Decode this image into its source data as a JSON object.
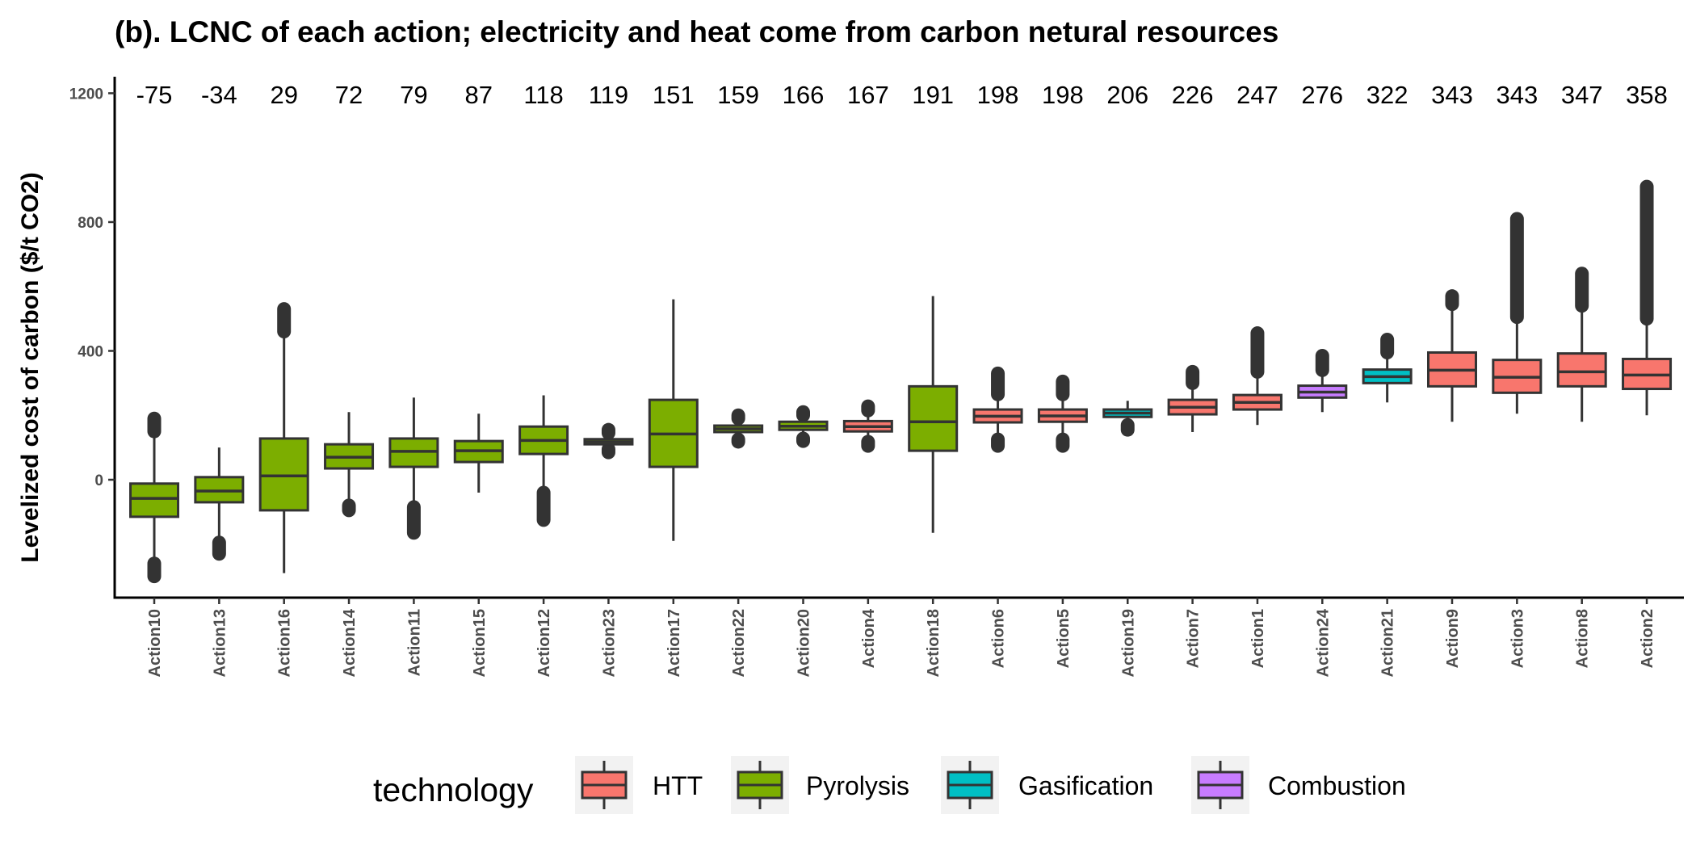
{
  "chart_data": {
    "type": "boxplot",
    "title": "(b). LCNC of each action; electricity and heat come from carbon netural resources",
    "ylabel": "Levelized cost of carbon ($/t CO2)",
    "xlabel": "",
    "ylim": [
      -370,
      1270
    ],
    "yticks": [
      0,
      400,
      800,
      1200
    ],
    "grid": false,
    "legend": {
      "title": "technology",
      "position": "bottom",
      "entries": [
        "HTT",
        "Pyrolysis",
        "Gasification",
        "Combustion"
      ]
    },
    "colors": {
      "HTT": "#F8766D",
      "Pyrolysis": "#7CAE00",
      "Gasification": "#00BFC4",
      "Combustion": "#C77CFF",
      "outline": "#333333"
    },
    "categories": [
      "Action10",
      "Action13",
      "Action16",
      "Action14",
      "Action11",
      "Action15",
      "Action12",
      "Action23",
      "Action17",
      "Action22",
      "Action20",
      "Action4",
      "Action18",
      "Action6",
      "Action5",
      "Action19",
      "Action7",
      "Action1",
      "Action24",
      "Action21",
      "Action9",
      "Action3",
      "Action8",
      "Action2"
    ],
    "mean_labels": [
      "-75",
      "-34",
      "29",
      "72",
      "79",
      "87",
      "118",
      "119",
      "151",
      "159",
      "166",
      "167",
      "191",
      "198",
      "198",
      "206",
      "226",
      "247",
      "276",
      "322",
      "343",
      "343",
      "347",
      "358"
    ],
    "boxes": [
      {
        "category": "Action10",
        "technology": "Pyrolysis",
        "whisker_low": -270,
        "q1": -115,
        "median": -58,
        "q3": -12,
        "whisker_high": 130,
        "outliers": [
          [
            -300,
            -260
          ],
          [
            150,
            190
          ]
        ]
      },
      {
        "category": "Action13",
        "technology": "Pyrolysis",
        "whisker_low": -185,
        "q1": -70,
        "median": -35,
        "q3": 8,
        "whisker_high": 100,
        "outliers": [
          [
            -230,
            -195
          ]
        ]
      },
      {
        "category": "Action16",
        "technology": "Pyrolysis",
        "whisker_low": -290,
        "q1": -95,
        "median": 12,
        "q3": 128,
        "whisker_high": 460,
        "outliers": [
          [
            460,
            530
          ]
        ]
      },
      {
        "category": "Action14",
        "technology": "Pyrolysis",
        "whisker_low": -70,
        "q1": 35,
        "median": 70,
        "q3": 110,
        "whisker_high": 210,
        "outliers": [
          [
            -95,
            -80
          ]
        ]
      },
      {
        "category": "Action11",
        "technology": "Pyrolysis",
        "whisker_low": -80,
        "q1": 40,
        "median": 88,
        "q3": 128,
        "whisker_high": 255,
        "outliers": [
          [
            -165,
            -85
          ]
        ]
      },
      {
        "category": "Action15",
        "technology": "Pyrolysis",
        "whisker_low": -40,
        "q1": 55,
        "median": 90,
        "q3": 120,
        "whisker_high": 205,
        "outliers": []
      },
      {
        "category": "Action12",
        "technology": "Pyrolysis",
        "whisker_low": -40,
        "q1": 80,
        "median": 122,
        "q3": 165,
        "whisker_high": 262,
        "outliers": [
          [
            -125,
            -40
          ]
        ]
      },
      {
        "category": "Action23",
        "technology": "Pyrolysis",
        "whisker_low": 100,
        "q1": 110,
        "median": 118,
        "q3": 126,
        "whisker_high": 138,
        "outliers": [
          [
            85,
            95
          ],
          [
            145,
            155
          ]
        ]
      },
      {
        "category": "Action17",
        "technology": "Pyrolysis",
        "whisker_low": -190,
        "q1": 40,
        "median": 142,
        "q3": 248,
        "whisker_high": 560,
        "outliers": []
      },
      {
        "category": "Action22",
        "technology": "Pyrolysis",
        "whisker_low": 138,
        "q1": 148,
        "median": 158,
        "q3": 168,
        "whisker_high": 180,
        "outliers": [
          [
            118,
            125
          ],
          [
            190,
            200
          ]
        ]
      },
      {
        "category": "Action20",
        "technology": "Pyrolysis",
        "whisker_low": 140,
        "q1": 155,
        "median": 166,
        "q3": 180,
        "whisker_high": 195,
        "outliers": [
          [
            120,
            128
          ],
          [
            200,
            210
          ]
        ]
      },
      {
        "category": "Action4",
        "technology": "HTT",
        "whisker_low": 125,
        "q1": 150,
        "median": 165,
        "q3": 182,
        "whisker_high": 205,
        "outliers": [
          [
            105,
            118
          ],
          [
            215,
            228
          ]
        ]
      },
      {
        "category": "Action18",
        "technology": "Pyrolysis",
        "whisker_low": -165,
        "q1": 90,
        "median": 180,
        "q3": 290,
        "whisker_high": 570,
        "outliers": []
      },
      {
        "category": "Action6",
        "technology": "HTT",
        "whisker_low": 130,
        "q1": 178,
        "median": 197,
        "q3": 218,
        "whisker_high": 260,
        "outliers": [
          [
            105,
            125
          ],
          [
            265,
            330
          ]
        ]
      },
      {
        "category": "Action5",
        "technology": "HTT",
        "whisker_low": 130,
        "q1": 180,
        "median": 198,
        "q3": 218,
        "whisker_high": 260,
        "outliers": [
          [
            105,
            125
          ],
          [
            265,
            305
          ]
        ]
      },
      {
        "category": "Action19",
        "technology": "Gasification",
        "whisker_low": 175,
        "q1": 195,
        "median": 207,
        "q3": 218,
        "whisker_high": 245,
        "outliers": [
          [
            155,
            170
          ]
        ]
      },
      {
        "category": "Action7",
        "technology": "HTT",
        "whisker_low": 148,
        "q1": 203,
        "median": 225,
        "q3": 248,
        "whisker_high": 295,
        "outliers": [
          [
            300,
            335
          ]
        ]
      },
      {
        "category": "Action1",
        "technology": "HTT",
        "whisker_low": 170,
        "q1": 218,
        "median": 240,
        "q3": 263,
        "whisker_high": 330,
        "outliers": [
          [
            335,
            455
          ]
        ]
      },
      {
        "category": "Action24",
        "technology": "Combustion",
        "whisker_low": 210,
        "q1": 255,
        "median": 272,
        "q3": 292,
        "whisker_high": 330,
        "outliers": [
          [
            340,
            385
          ]
        ]
      },
      {
        "category": "Action21",
        "technology": "Gasification",
        "whisker_low": 240,
        "q1": 300,
        "median": 320,
        "q3": 342,
        "whisker_high": 390,
        "outliers": [
          [
            395,
            435
          ]
        ]
      },
      {
        "category": "Action9",
        "technology": "HTT",
        "whisker_low": 180,
        "q1": 290,
        "median": 340,
        "q3": 395,
        "whisker_high": 525,
        "outliers": [
          [
            545,
            570
          ]
        ]
      },
      {
        "category": "Action3",
        "technology": "HTT",
        "whisker_low": 205,
        "q1": 270,
        "median": 318,
        "q3": 372,
        "whisker_high": 500,
        "outliers": [
          [
            505,
            810
          ]
        ]
      },
      {
        "category": "Action8",
        "technology": "HTT",
        "whisker_low": 180,
        "q1": 290,
        "median": 335,
        "q3": 392,
        "whisker_high": 535,
        "outliers": [
          [
            540,
            640
          ]
        ]
      },
      {
        "category": "Action2",
        "technology": "HTT",
        "whisker_low": 200,
        "q1": 282,
        "median": 325,
        "q3": 375,
        "whisker_high": 495,
        "outliers": [
          [
            500,
            910
          ]
        ]
      }
    ]
  }
}
